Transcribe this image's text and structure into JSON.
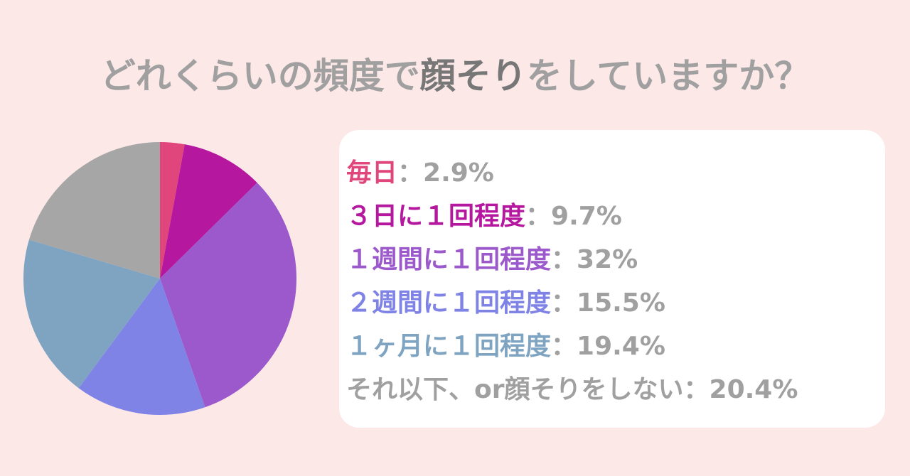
{
  "chart_data": {
    "type": "pie",
    "title": [
      "どれくらいの頻度で",
      "顔そり",
      "をしていますか？"
    ],
    "categories": [
      "毎日",
      "３日に１回程度",
      "１週間に１回程度",
      "２週間に１回程度",
      "１ヶ月に１回程度",
      "それ以下、or顔そりをしない"
    ],
    "values": [
      2.9,
      9.7,
      32,
      15.5,
      19.4,
      20.4
    ],
    "value_labels": [
      "2.9%",
      "9.7%",
      "32%",
      "15.5%",
      "19.4%",
      "20.4%"
    ],
    "colors": [
      "#e0457b",
      "#b5179e",
      "#9b59cc",
      "#7f83e6",
      "#7ea4c2",
      "#a6a6a6"
    ],
    "separator": "："
  }
}
